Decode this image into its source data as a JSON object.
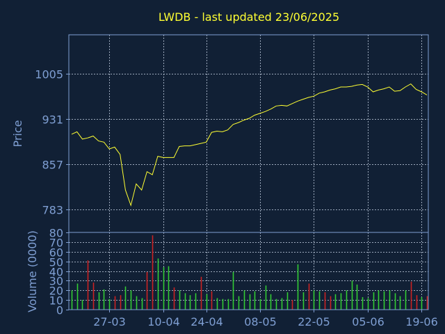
{
  "title": "LWDB - last updated 23/06/2025",
  "chart_data": [
    {
      "type": "line",
      "ylabel": "Price",
      "ylim": [
        746,
        1068
      ],
      "yticks": [
        "783",
        "857",
        "931",
        "1005"
      ],
      "ytick_values": [
        783,
        857,
        931,
        1005
      ],
      "grid": true,
      "line_color": "#ffff33",
      "x": [
        "2025-03-18",
        "2025-03-19",
        "2025-03-20",
        "2025-03-21",
        "2025-03-24",
        "2025-03-25",
        "2025-03-26",
        "2025-03-27",
        "2025-03-28",
        "2025-03-31",
        "2025-04-01",
        "2025-04-02",
        "2025-04-03",
        "2025-04-04",
        "2025-04-07",
        "2025-04-08",
        "2025-04-09",
        "2025-04-10",
        "2025-04-11",
        "2025-04-14",
        "2025-04-15",
        "2025-04-16",
        "2025-04-17",
        "2025-04-22",
        "2025-04-23",
        "2025-04-24",
        "2025-04-25",
        "2025-04-28",
        "2025-04-29",
        "2025-04-30",
        "2025-05-01",
        "2025-05-02",
        "2025-05-05",
        "2025-05-06",
        "2025-05-07",
        "2025-05-08",
        "2025-05-09",
        "2025-05-12",
        "2025-05-13",
        "2025-05-14",
        "2025-05-15",
        "2025-05-16",
        "2025-05-19",
        "2025-05-20",
        "2025-05-21",
        "2025-05-22",
        "2025-05-23",
        "2025-05-27",
        "2025-05-28",
        "2025-05-29",
        "2025-05-30",
        "2025-06-02",
        "2025-06-03",
        "2025-06-04",
        "2025-06-05",
        "2025-06-06",
        "2025-06-09",
        "2025-06-10",
        "2025-06-11",
        "2025-06-12",
        "2025-06-13",
        "2025-06-16",
        "2025-06-17",
        "2025-06-18",
        "2025-06-19",
        "2025-06-20",
        "2025-06-23"
      ],
      "values": [
        906,
        910,
        898,
        900,
        903,
        895,
        893,
        882,
        885,
        873,
        815,
        790,
        825,
        815,
        845,
        840,
        870,
        868,
        868,
        868,
        886,
        887,
        887,
        889,
        891,
        893,
        909,
        911,
        910,
        913,
        922,
        925,
        929,
        932,
        937,
        940,
        943,
        947,
        952,
        953,
        952,
        956,
        960,
        963,
        966,
        968,
        973,
        975,
        978,
        980,
        983,
        983,
        984,
        986,
        987,
        983,
        975,
        978,
        980,
        983,
        976,
        977,
        983,
        988,
        979,
        975,
        970
      ],
      "xtick_labels": [
        "27-03",
        "10-04",
        "24-04",
        "08-05",
        "22-05",
        "05-06",
        "19-06"
      ],
      "xtick_index": [
        7,
        17,
        25,
        35,
        45,
        55,
        65
      ]
    },
    {
      "type": "bar",
      "ylabel": "Volume (0000)",
      "ylim": [
        0,
        80
      ],
      "yticks": [
        "0",
        "10",
        "20",
        "30",
        "40",
        "50",
        "60",
        "70",
        "80"
      ],
      "ytick_values": [
        0,
        10,
        20,
        30,
        40,
        50,
        60,
        70,
        80
      ],
      "grid": true,
      "up_color": "#33cc33",
      "down_color": "#cc2222",
      "values": [
        20,
        27,
        10,
        51,
        28,
        18,
        21,
        11,
        14,
        15,
        24,
        20,
        14,
        12,
        39,
        77,
        53,
        44,
        45,
        23,
        20,
        17,
        15,
        17,
        34,
        16,
        19,
        12,
        11,
        11,
        39,
        14,
        20,
        16,
        19,
        11,
        25,
        16,
        11,
        12,
        18,
        10,
        47,
        18,
        27,
        20,
        19,
        18,
        14,
        16,
        17,
        20,
        30,
        26,
        13,
        12,
        18,
        20,
        19,
        20,
        17,
        14,
        20,
        29,
        15,
        13,
        14
      ],
      "directions": [
        "up",
        "up",
        "up",
        "down",
        "down",
        "up",
        "up",
        "up",
        "down",
        "down",
        "up",
        "up",
        "up",
        "up",
        "down",
        "down",
        "up",
        "up",
        "up",
        "down",
        "up",
        "up",
        "up",
        "up",
        "down",
        "up",
        "down",
        "up",
        "up",
        "up",
        "up",
        "up",
        "up",
        "up",
        "up",
        "up",
        "up",
        "up",
        "up",
        "up",
        "up",
        "down",
        "up",
        "up",
        "down",
        "up",
        "up",
        "down",
        "down",
        "up",
        "up",
        "up",
        "up",
        "up",
        "up",
        "up",
        "up",
        "up",
        "up",
        "up",
        "up",
        "up",
        "up",
        "down",
        "down",
        "up",
        "down"
      ]
    }
  ]
}
